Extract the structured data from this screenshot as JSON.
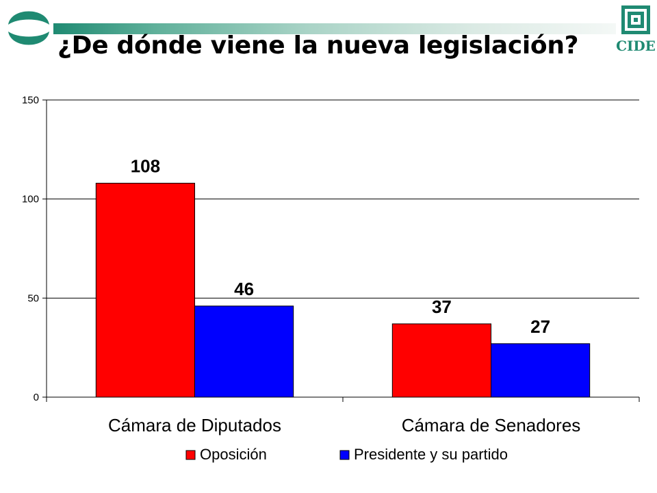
{
  "header": {
    "title": "¿De dónde viene la nueva legislación?",
    "logo_text": "CIDE"
  },
  "colors": {
    "accent": "#1f8a72",
    "oposicion": "#ff0000",
    "presidente": "#0000ff"
  },
  "chart_data": {
    "type": "bar",
    "title": "",
    "xlabel": "",
    "ylabel": "",
    "categories": [
      "Cámara de Diputados",
      "Cámara de Senadores"
    ],
    "series": [
      {
        "name": "Oposición",
        "values": [
          108,
          37
        ],
        "color": "#ff0000"
      },
      {
        "name": "Presidente y su partido",
        "values": [
          46,
          27
        ],
        "color": "#0000ff"
      }
    ],
    "ylim": [
      0,
      150
    ],
    "yticks": [
      0,
      50,
      100,
      150
    ],
    "grid": true,
    "legend": "bottom"
  }
}
